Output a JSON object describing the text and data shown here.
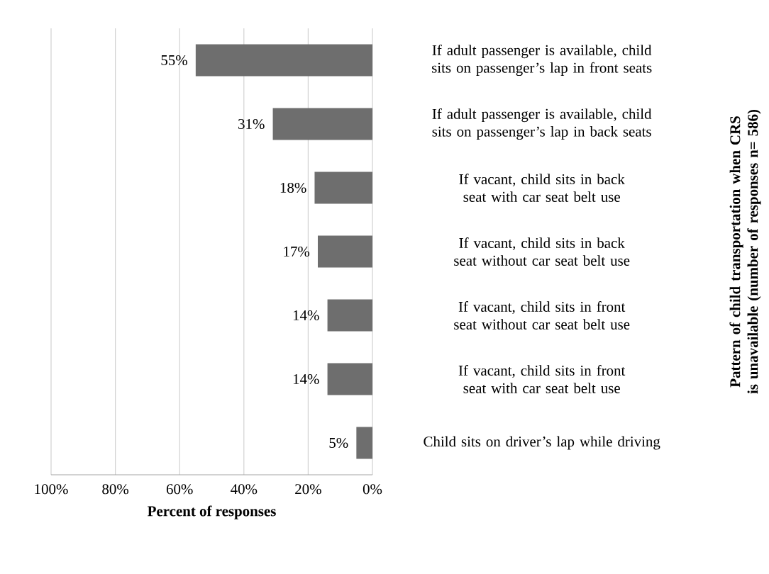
{
  "chart_data": {
    "type": "bar",
    "orientation": "horizontal",
    "categories": [
      "If adult passenger is available, child sits on passenger’s lap in front seats",
      "If adult passenger is available, child sits on passenger’s lap in back seats",
      "If vacant, child sits in back seat with car seat belt use",
      "If vacant, child sits in back seat without car seat belt use",
      "If vacant, child sits in front seat without car seat belt use",
      "If vacant, child sits in front seat with car seat belt use",
      "Child sits on driver’s lap while driving"
    ],
    "values": [
      55,
      31,
      18,
      17,
      14,
      14,
      5
    ],
    "value_labels": [
      "55%",
      "31%",
      "18%",
      "17%",
      "14%",
      "14%",
      "5%"
    ],
    "color": "#6e6e6e",
    "xlim": [
      100,
      0
    ],
    "xticks": [
      {
        "value": 100,
        "label": "100%"
      },
      {
        "value": 80,
        "label": "80%"
      },
      {
        "value": 60,
        "label": "60%"
      },
      {
        "value": 40,
        "label": "40%"
      },
      {
        "value": 20,
        "label": "20%"
      },
      {
        "value": 0,
        "label": "0%"
      }
    ],
    "xlabel": "Percent of responses",
    "ylabel": "Pattern of child transportation when CRS is unavailable (number of responses n= 586)",
    "grid": "x"
  }
}
